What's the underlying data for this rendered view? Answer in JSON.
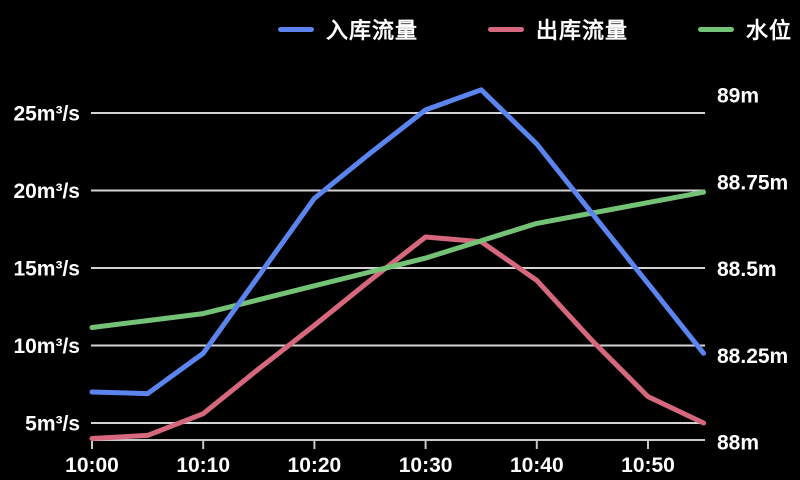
{
  "legend": {
    "items": [
      {
        "id": "inflow",
        "label": "入库流量",
        "color": "#5B84EE"
      },
      {
        "id": "outflow",
        "label": "出库流量",
        "color": "#D6687E"
      },
      {
        "id": "water-level",
        "label": "水位",
        "color": "#74C276"
      }
    ]
  },
  "colors": {
    "background": "#000000",
    "grid": "#D3D3D3",
    "axis": "#C9C9C9",
    "text": "#FFFFFF"
  },
  "chart_data": {
    "type": "line",
    "x": [
      "10:00",
      "10:05",
      "10:10",
      "10:15",
      "10:20",
      "10:25",
      "10:30",
      "10:35",
      "10:40",
      "10:45",
      "10:50",
      "10:55"
    ],
    "x_tick_labels": [
      "10:00",
      "10:10",
      "10:20",
      "10:30",
      "10:40",
      "10:50"
    ],
    "series": [
      {
        "id": "inflow",
        "name": "入库流量",
        "axis": "left",
        "color": "#5B84EE",
        "values": [
          7,
          6.9,
          9.5,
          14.5,
          19.5,
          22.4,
          25.2,
          26.5,
          23,
          18.5,
          14,
          9.5
        ]
      },
      {
        "id": "outflow",
        "name": "出库流量",
        "axis": "left",
        "color": "#D6687E",
        "values": [
          4,
          4.2,
          5.6,
          8.5,
          11.3,
          14.2,
          17,
          16.7,
          14.2,
          10.3,
          6.7,
          5
        ]
      },
      {
        "id": "water-level",
        "name": "水位",
        "axis": "right",
        "color": "#74C276",
        "values": [
          88.33,
          88.35,
          88.37,
          88.41,
          88.45,
          88.49,
          88.53,
          88.58,
          88.63,
          88.66,
          88.69,
          88.72
        ]
      }
    ],
    "left_axis": {
      "unit": "m³/s",
      "ticks": [
        5,
        10,
        15,
        20,
        25
      ],
      "tick_labels": [
        "5m³/s",
        "10m³/s",
        "15m³/s",
        "20m³/s",
        "25m³/s"
      ]
    },
    "right_axis": {
      "unit": "m",
      "ticks": [
        88,
        88.25,
        88.5,
        88.75,
        89
      ],
      "tick_labels": [
        "88m",
        "88.25m",
        "88.5m",
        "88.75m",
        "89m"
      ]
    },
    "grid": true,
    "legend_position": "top",
    "title": ""
  }
}
